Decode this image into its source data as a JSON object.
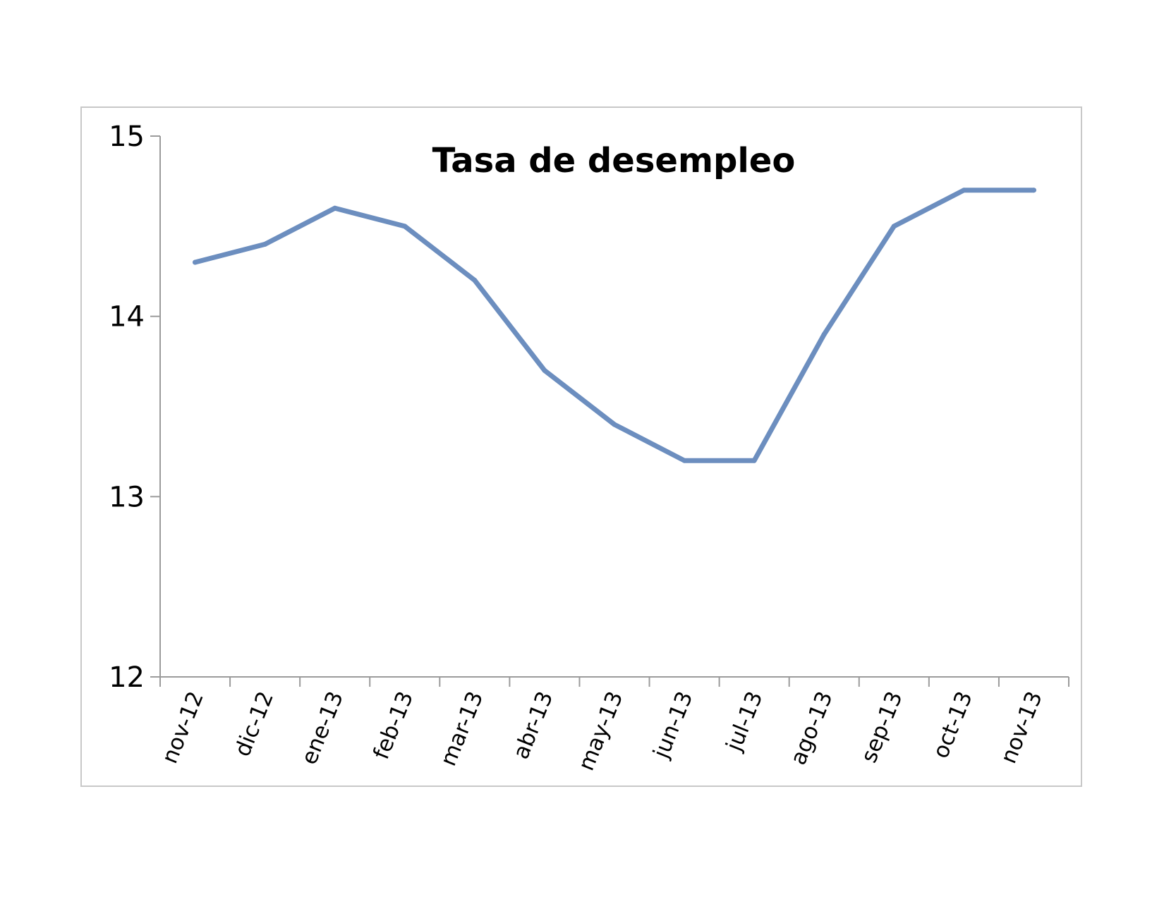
{
  "chart_data": {
    "type": "line",
    "title": "Tasa de desempleo",
    "xlabel": "",
    "ylabel": "",
    "categories": [
      "nov-12",
      "dic-12",
      "ene-13",
      "feb-13",
      "mar-13",
      "abr-13",
      "may-13",
      "jun-13",
      "jul-13",
      "ago-13",
      "sep-13",
      "oct-13",
      "nov-13"
    ],
    "series": [
      {
        "values": [
          14.3,
          14.4,
          14.6,
          14.5,
          14.2,
          13.7,
          13.4,
          13.2,
          13.2,
          13.9,
          14.5,
          14.7,
          14.7
        ],
        "color": "#6c8ebf"
      }
    ],
    "ylim": [
      12,
      15
    ],
    "yticks": [
      "12",
      "13",
      "14",
      "15"
    ],
    "grid": false,
    "legend": "none"
  },
  "colors": {
    "axis": "#9b9b9b",
    "frame": "#c8c8c8",
    "line": "#6c8ebf"
  }
}
